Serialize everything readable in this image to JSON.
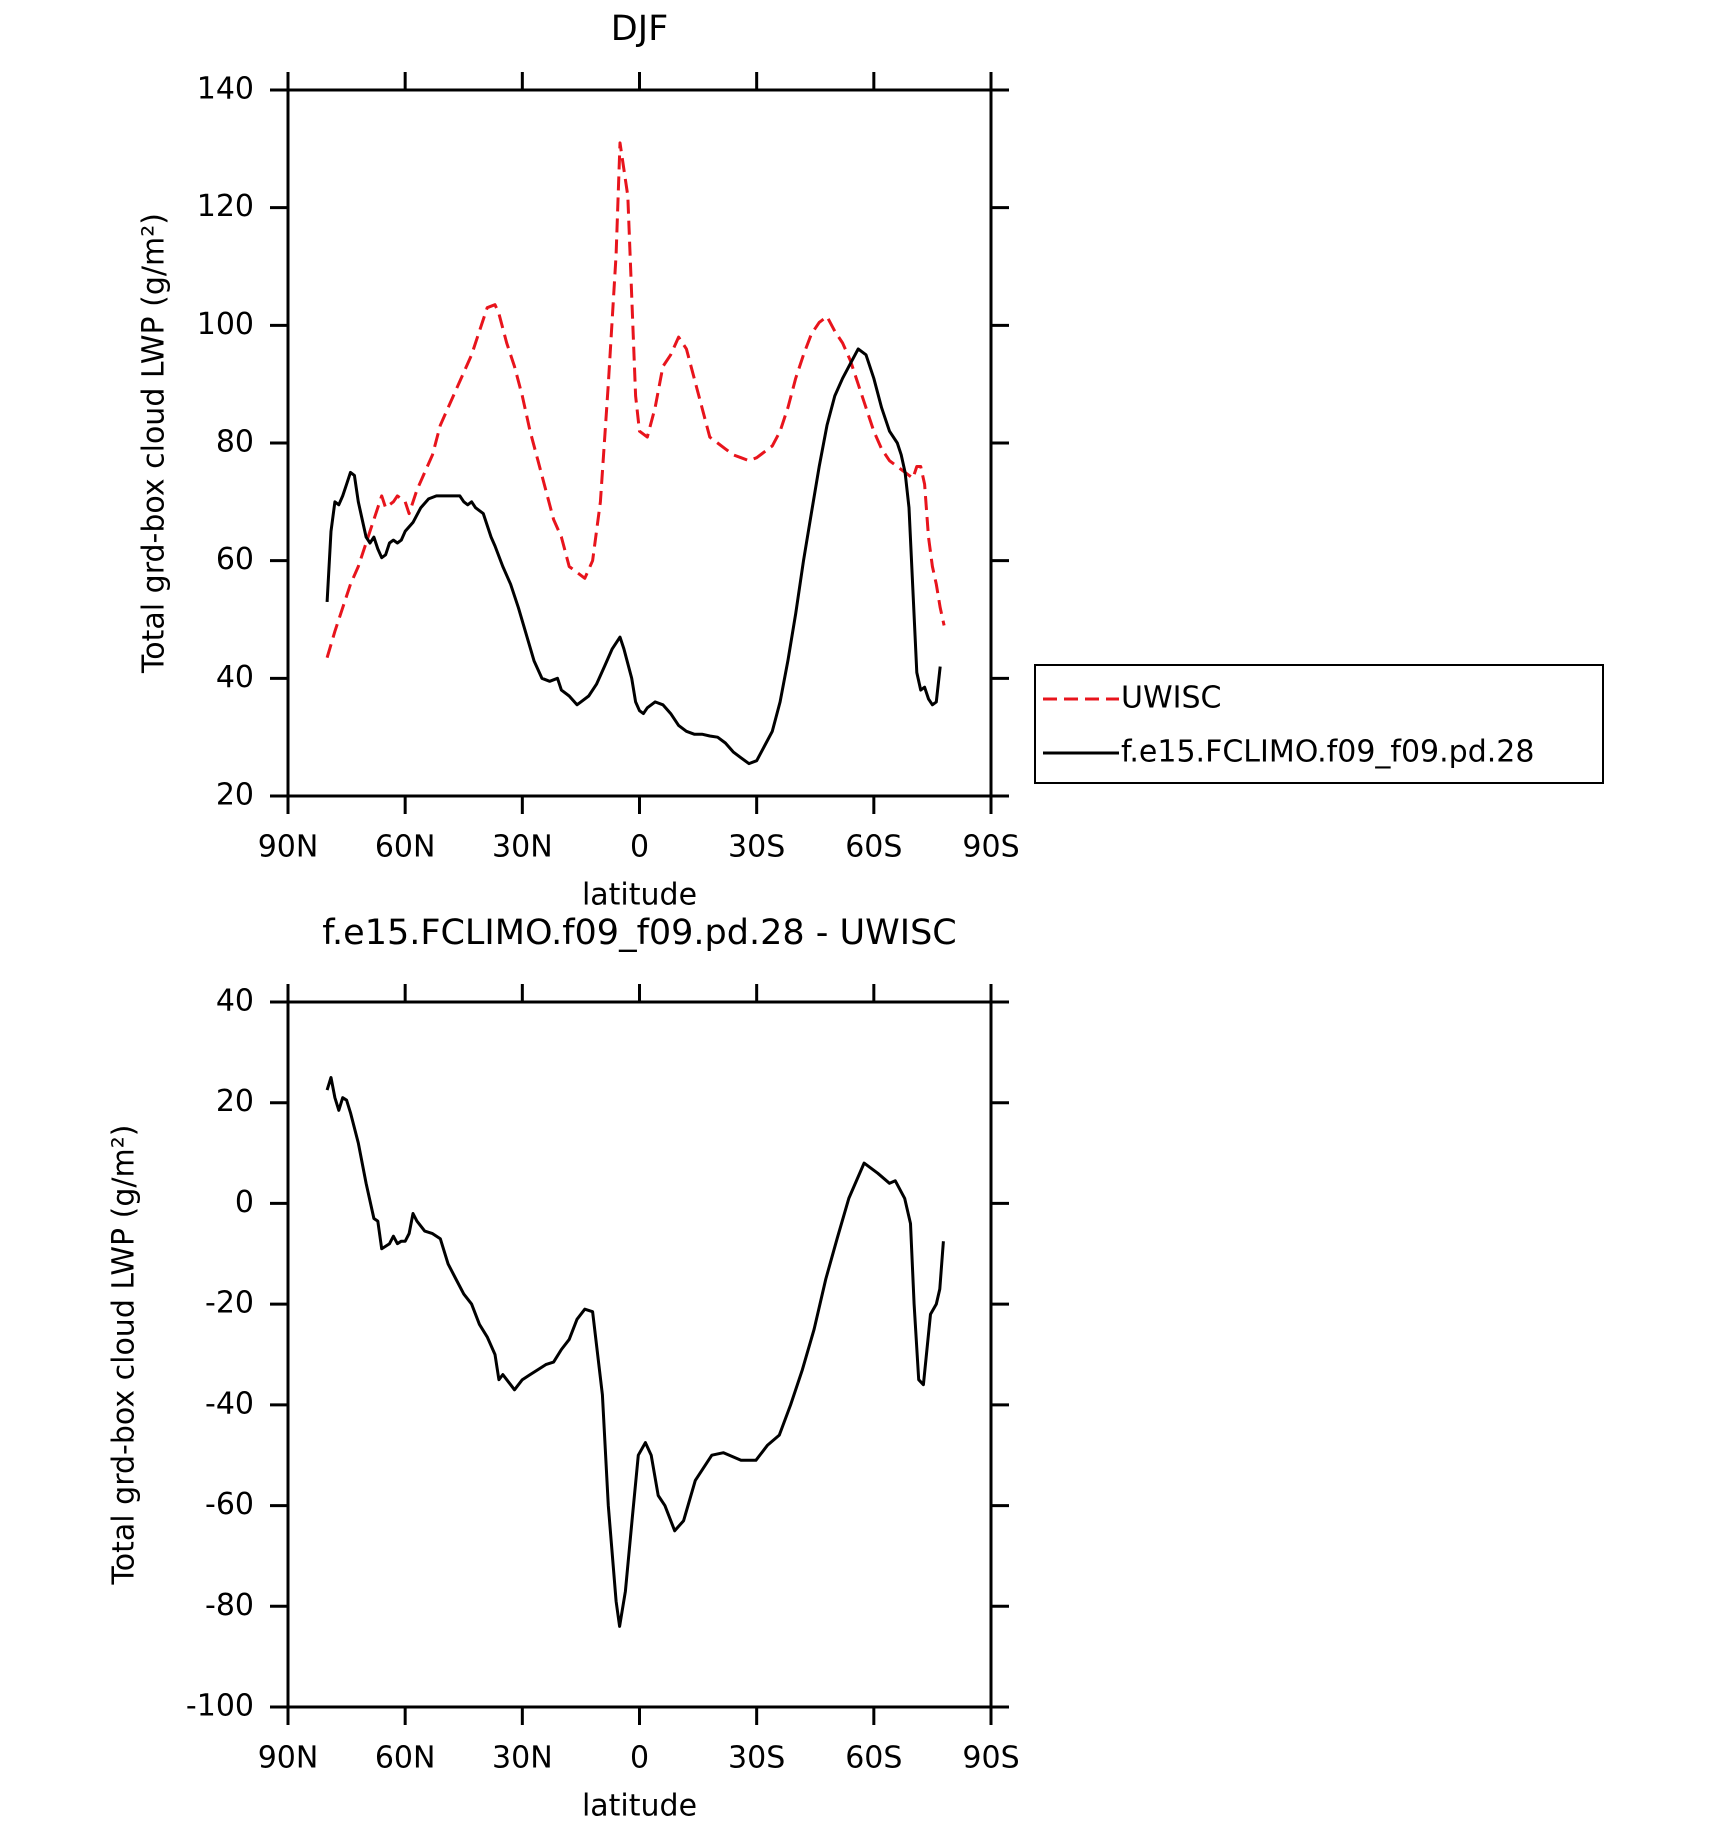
{
  "chart_data": [
    {
      "type": "line",
      "title": "DJF",
      "x_label": "latitude",
      "y_label": "Total grd-box cloud LWP (g/m²)",
      "xlim": [
        90,
        -90
      ],
      "xticks": [
        {
          "value": 90,
          "label": "90N"
        },
        {
          "value": 60,
          "label": "60N"
        },
        {
          "value": 30,
          "label": "30N"
        },
        0,
        {
          "value": -30,
          "label": "30S"
        },
        {
          "value": -60,
          "label": "60S"
        },
        {
          "value": -90,
          "label": "90S"
        }
      ],
      "ylim": [
        20,
        140
      ],
      "yticks": [
        20,
        40,
        60,
        80,
        100,
        120,
        140
      ],
      "legend": "right",
      "series": [
        {
          "name": "UWISC",
          "color": "#e8141c",
          "linestyle": "dashed",
          "x": [
            80,
            78,
            76,
            74,
            72,
            70,
            68,
            66,
            65,
            63,
            62,
            60,
            59,
            57,
            55,
            53,
            51,
            49,
            47,
            45,
            43,
            41,
            39,
            37,
            36,
            34,
            32,
            30,
            28,
            26,
            24,
            22,
            20,
            18,
            16,
            14,
            12,
            10,
            8,
            6,
            5,
            3,
            2,
            1,
            0,
            -2,
            -4,
            -6,
            -8,
            -10,
            -12,
            -14,
            -16,
            -18,
            -20,
            -22,
            -24,
            -26,
            -28,
            -30,
            -32,
            -34,
            -36,
            -38,
            -40,
            -42,
            -44,
            -46,
            -48,
            -50,
            -52,
            -54,
            -56,
            -58,
            -60,
            -62,
            -64,
            -66,
            -68,
            -70,
            -71,
            -72,
            -73,
            -74,
            -75,
            -76,
            -77,
            -78
          ],
          "values": [
            43.5,
            48,
            52,
            56,
            59,
            63,
            67,
            71,
            69,
            70,
            71,
            70,
            68,
            72,
            75,
            78,
            83,
            86,
            89,
            92,
            95,
            99,
            103,
            103.5,
            102,
            97,
            93,
            88,
            82,
            77,
            72,
            67,
            64,
            59,
            58,
            57,
            60,
            70,
            90,
            112,
            131,
            122,
            105,
            88,
            82,
            81,
            86,
            93,
            95,
            98,
            96,
            91,
            86,
            81,
            80,
            79,
            78,
            77.5,
            77,
            77.5,
            78.5,
            79.5,
            82,
            86,
            91,
            95,
            98.5,
            100.5,
            101.5,
            99,
            97,
            94,
            90,
            86,
            82,
            79,
            77,
            76,
            75,
            74,
            76,
            76,
            73,
            64,
            59,
            56,
            52,
            49
          ]
        },
        {
          "name": "f.e15.FCLIMO.f09_f09.pd.28",
          "color": "#000000",
          "linestyle": "solid",
          "x": [
            80,
            79,
            78,
            77,
            76,
            75,
            74,
            73,
            72,
            71,
            70,
            69,
            68,
            67,
            66,
            65,
            64,
            63,
            62,
            61,
            60,
            58,
            56,
            54,
            52,
            50,
            48,
            46,
            45,
            44,
            43,
            42,
            40,
            39,
            38,
            37,
            35,
            33,
            31,
            29,
            27,
            25,
            23,
            21,
            20,
            18,
            16,
            15,
            13,
            11,
            9,
            7,
            5,
            4,
            2,
            1,
            0,
            -1,
            -2,
            -4,
            -6,
            -8,
            -10,
            -12,
            -14,
            -16,
            -18,
            -20,
            -22,
            -24,
            -26,
            -28,
            -30,
            -32,
            -34,
            -36,
            -38,
            -40,
            -42,
            -44,
            -46,
            -48,
            -50,
            -52,
            -54,
            -56,
            -58,
            -60,
            -62,
            -64,
            -66,
            -67,
            -68,
            -69,
            -70,
            -71,
            -72,
            -73,
            -74,
            -75,
            -76,
            -77
          ],
          "values": [
            53,
            65,
            70,
            69.5,
            71,
            73,
            75,
            74.5,
            70,
            67,
            64,
            63,
            64,
            62,
            60.5,
            61,
            63,
            63.5,
            63,
            63.5,
            65,
            66.5,
            69,
            70.5,
            71,
            71,
            71,
            71,
            70,
            69.5,
            70,
            69,
            68,
            66,
            64,
            62.5,
            59,
            56,
            52,
            47.5,
            43,
            40,
            39.5,
            40,
            38,
            37,
            35.5,
            36,
            37,
            39,
            42,
            45,
            47,
            45,
            40,
            36,
            34.5,
            34,
            35,
            36,
            35.5,
            34,
            32,
            31,
            30.5,
            30.5,
            30.2,
            30,
            29,
            27.5,
            26.5,
            25.5,
            26,
            28.5,
            31,
            36,
            43,
            51,
            60,
            68,
            76,
            83,
            88,
            91,
            93.5,
            96,
            95,
            91,
            86,
            82,
            80,
            78,
            75,
            69,
            55,
            41,
            38,
            38.5,
            36.5,
            35.5,
            36,
            42
          ]
        }
      ]
    },
    {
      "type": "line",
      "title": "f.e15.FCLIMO.f09_f09.pd.28 - UWISC",
      "x_label": "latitude",
      "y_label": "Total grd-box cloud LWP (g/m²)",
      "xlim": [
        90,
        -90
      ],
      "xticks": [
        {
          "value": 90,
          "label": "90N"
        },
        {
          "value": 60,
          "label": "60N"
        },
        {
          "value": 30,
          "label": "30N"
        },
        0,
        {
          "value": -30,
          "label": "30S"
        },
        {
          "value": -60,
          "label": "60S"
        },
        {
          "value": -90,
          "label": "90S"
        }
      ],
      "ylim": [
        -100,
        40
      ],
      "yticks": [
        -100,
        -80,
        -60,
        -40,
        -20,
        0,
        20,
        40
      ],
      "series": [
        {
          "color": "#000000",
          "linestyle": "solid",
          "x": [
            80,
            79,
            78,
            77,
            76,
            75,
            74,
            72,
            70,
            68,
            67,
            66,
            64,
            63,
            62,
            61,
            60,
            59,
            58,
            57,
            55,
            53,
            51,
            49,
            47,
            45,
            43,
            41,
            39,
            37,
            36,
            35,
            33,
            32,
            30,
            28,
            26,
            24,
            22,
            20,
            18,
            16,
            14,
            12,
            9.5,
            8,
            6,
            5.1,
            3.6,
            1.8,
            0.3,
            -1.5,
            -3,
            -4.8,
            -6.5,
            -9,
            -11.3,
            -14.3,
            -18.5,
            -21.5,
            -26,
            -29.8,
            -32.8,
            -35.8,
            -38.7,
            -41.7,
            -44.7,
            -47.7,
            -50.6,
            -53.6,
            -57.5,
            -61,
            -64,
            -65.5,
            -67.9,
            -69.4,
            -70.3,
            -71.5,
            -72.7,
            -74.5,
            -76,
            -76.9,
            -77.8
          ],
          "values": [
            22.5,
            25,
            21,
            18.5,
            21,
            20.5,
            18,
            12,
            4,
            -3,
            -3.5,
            -9,
            -8,
            -6.5,
            -8,
            -7.5,
            -7.5,
            -6,
            -2,
            -3.5,
            -5.5,
            -6,
            -7,
            -12,
            -15,
            -18,
            -20,
            -24,
            -26.5,
            -30,
            -35,
            -34,
            -36,
            -37,
            -35,
            -34,
            -33,
            -32,
            -31.5,
            -29,
            -27,
            -23,
            -21,
            -21.5,
            -38,
            -60,
            -79,
            -84,
            -77,
            -62,
            -50,
            -47.5,
            -50,
            -58,
            -60,
            -65,
            -63,
            -55,
            -50,
            -49.5,
            -51,
            -51,
            -48,
            -46,
            -40,
            -33,
            -25,
            -15,
            -7,
            1,
            8,
            6,
            4,
            4.5,
            1,
            -4,
            -20,
            -35,
            -36,
            -22,
            -20,
            -17,
            -7.5
          ]
        }
      ]
    }
  ]
}
